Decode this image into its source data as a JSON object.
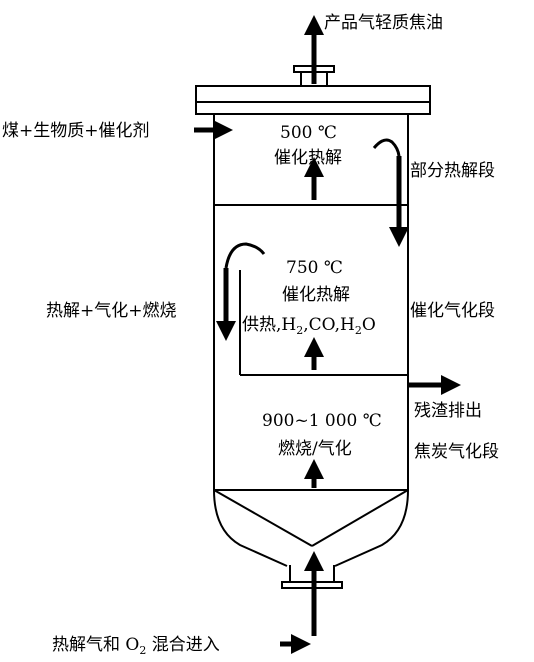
{
  "labels": {
    "product_gas": "产品气轻质焦油",
    "feed": "煤+生物质+催化剂",
    "partial_pyrolysis": "部分热解段",
    "temp_top": "500 ℃",
    "process_top": "催化热解",
    "temp_mid": "750 ℃",
    "process_mid": "催化热解",
    "supply_prefix": "供热,H",
    "supply_h_sub": "2",
    "supply_mid": ",CO,H",
    "supply_water_sub": "2",
    "supply_suffix": "O",
    "left_middle": "热解+气化+燃烧",
    "catalytic_gasification": "催化气化段",
    "residue_out": "残渣排出",
    "temp_bottom": "900~1 000 ℃",
    "process_bottom": "燃烧/气化",
    "char_gasification": "焦炭气化段",
    "inlet_prefix": "热解气和 O",
    "inlet_o_sub": "2",
    "inlet_suffix": " 混合进入"
  },
  "colors": {
    "line": "#000000",
    "background": "#ffffff"
  }
}
